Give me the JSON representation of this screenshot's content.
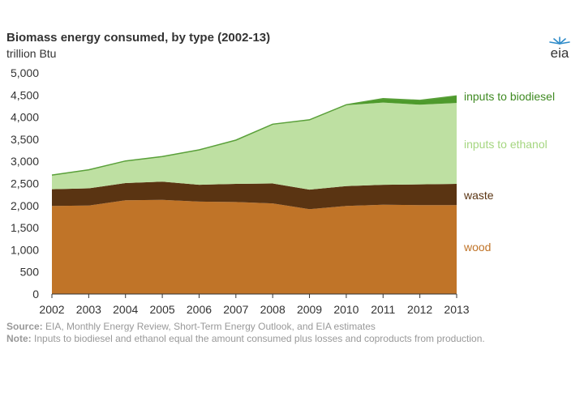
{
  "header": {
    "title": "Biomass energy consumed, by type (2002-13)",
    "unit": "trillion Btu",
    "logo_text": "eia"
  },
  "footer": {
    "source_label": "Source:",
    "source_text": "EIA, Monthly Energy Review, Short-Term Energy Outlook, and EIA estimates",
    "note_label": "Note:",
    "note_text": "Inputs to biodiesel and ethanol equal the amount consumed plus losses and coproducts from production."
  },
  "chart_data": {
    "type": "area",
    "stacked": true,
    "title": "Biomass energy consumed, by type (2002-13)",
    "ylabel": "trillion Btu",
    "x": [
      "2002",
      "2003",
      "2004",
      "2005",
      "2006",
      "2007",
      "2008",
      "2009",
      "2010",
      "2011",
      "2012",
      "2013"
    ],
    "ylim": [
      0,
      5000
    ],
    "yticks": [
      "0",
      "500",
      "1,000",
      "1,500",
      "2,000",
      "2,500",
      "3,000",
      "3,500",
      "4,000",
      "4,500",
      "5,000"
    ],
    "grid": false,
    "legend": "right-inline",
    "series": [
      {
        "name": "wood",
        "color": "#c07428",
        "values": [
          1990,
          2000,
          2120,
          2130,
          2090,
          2080,
          2050,
          1920,
          1990,
          2020,
          2010,
          2010
        ]
      },
      {
        "name": "waste",
        "color": "#5a3412",
        "values": [
          380,
          390,
          390,
          410,
          380,
          410,
          450,
          440,
          450,
          450,
          470,
          480
        ]
      },
      {
        "name": "inputs to ethanol",
        "color": "#bee0a2",
        "values": [
          320,
          420,
          500,
          570,
          790,
          990,
          1340,
          1580,
          1830,
          1860,
          1800,
          1830
        ]
      },
      {
        "name": "inputs to biodiesel",
        "color": "#4e9a2c",
        "values": [
          0,
          0,
          0,
          0,
          0,
          0,
          0,
          0,
          10,
          90,
          100,
          160
        ]
      }
    ]
  }
}
